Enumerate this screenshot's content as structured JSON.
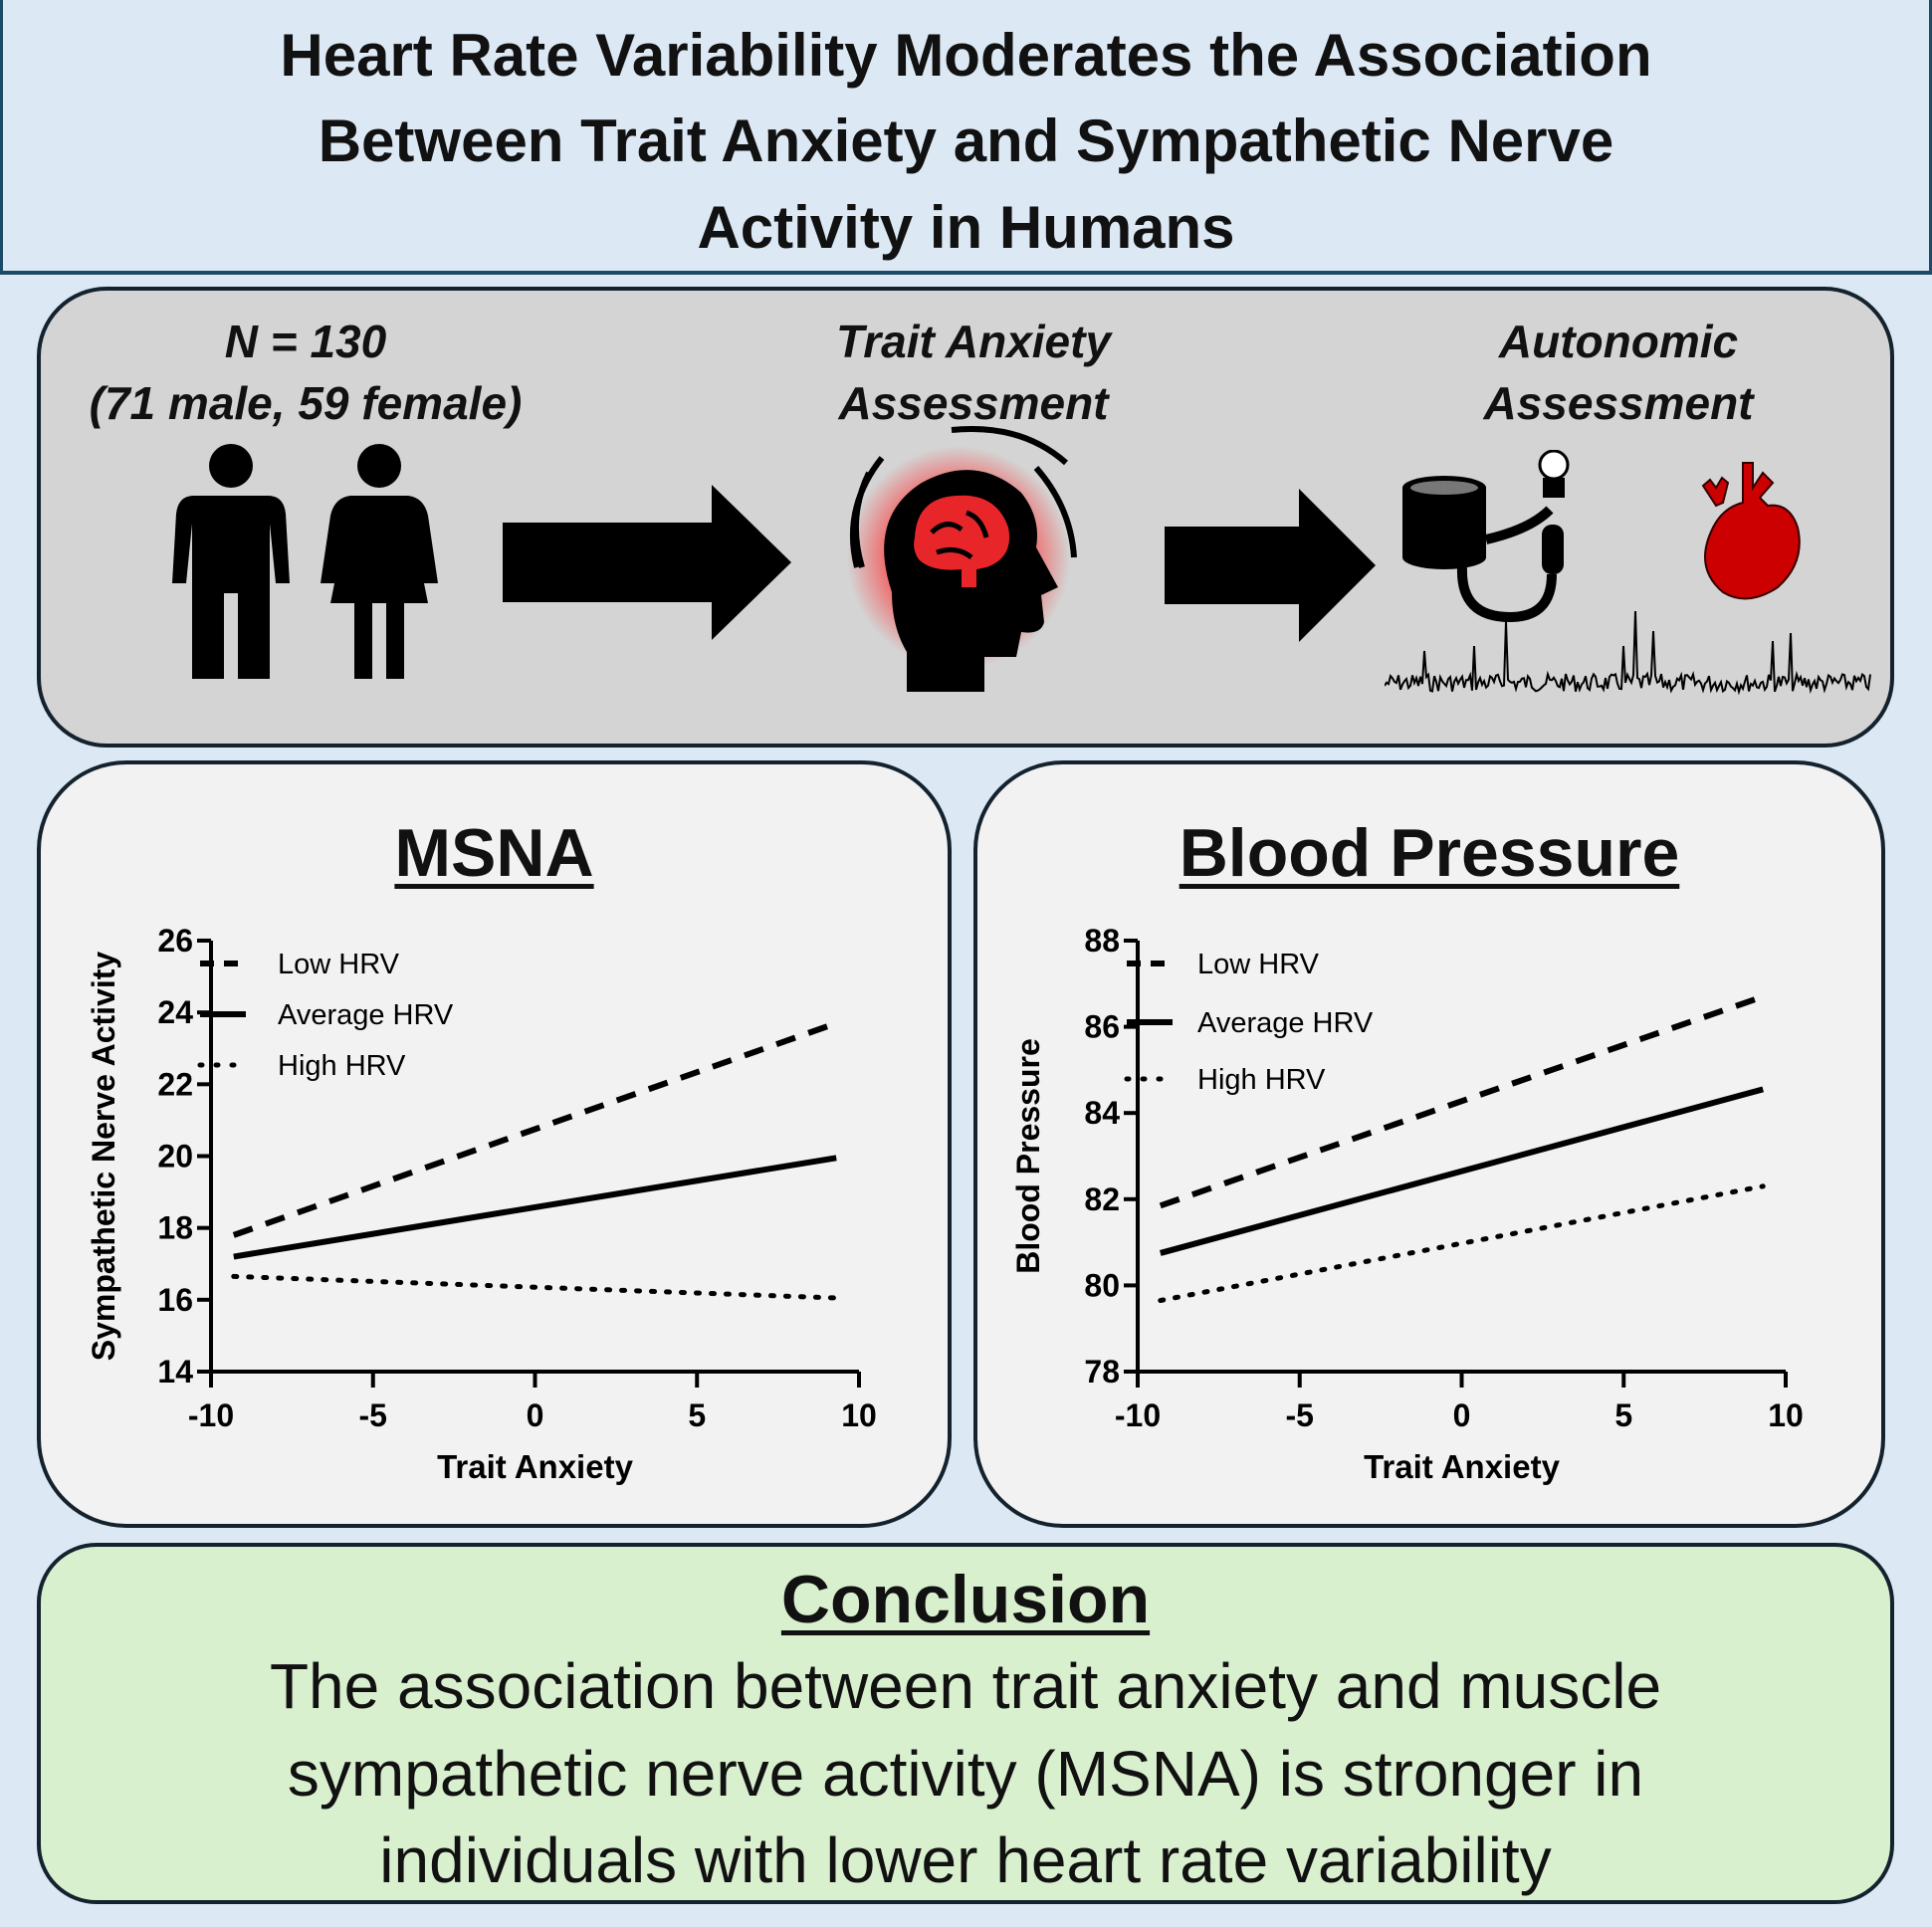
{
  "title": {
    "lines": [
      "Heart Rate Variability Moderates the Association",
      "Between Trait Anxiety and Sympathetic Nerve",
      "Activity in Humans"
    ]
  },
  "methods": {
    "sample": {
      "line1": "N = 130",
      "line2": "(71 male, 59 female)"
    },
    "anxiety": {
      "line1": "Trait Anxiety",
      "line2": "Assessment"
    },
    "autonomic": {
      "line1": "Autonomic",
      "line2": "Assessment"
    },
    "icons": [
      "male-person-icon",
      "female-person-icon",
      "arrow-right-icon",
      "brain-head-icon",
      "blood-pressure-cuff-icon",
      "heart-icon",
      "nerve-signal-trace-icon"
    ],
    "colors": {
      "brain": "#e8262a",
      "heart": "#cc0000"
    }
  },
  "chart_data": [
    {
      "type": "line",
      "title": "MSNA",
      "xlabel": "Trait Anxiety",
      "ylabel": "Sympathetic Nerve Activity",
      "xlim": [
        -10,
        10
      ],
      "ylim": [
        14,
        26
      ],
      "xticks": [
        -10,
        -5,
        0,
        5,
        10
      ],
      "yticks": [
        14,
        16,
        18,
        20,
        22,
        24,
        26
      ],
      "grid": false,
      "legend": "top-left",
      "series": [
        {
          "name": "Low HRV",
          "style": "dashed",
          "x": [
            -9.3,
            9.3
          ],
          "y": [
            17.8,
            23.7
          ]
        },
        {
          "name": "Average HRV",
          "style": "solid",
          "x": [
            -9.3,
            9.3
          ],
          "y": [
            17.2,
            19.95
          ]
        },
        {
          "name": "High HRV",
          "style": "dotted",
          "x": [
            -9.3,
            9.3
          ],
          "y": [
            16.65,
            16.05
          ]
        }
      ]
    },
    {
      "type": "line",
      "title": "Blood Pressure",
      "xlabel": "Trait Anxiety",
      "ylabel": "Blood Pressure",
      "xlim": [
        -10,
        10
      ],
      "ylim": [
        78,
        88
      ],
      "xticks": [
        -10,
        -5,
        0,
        5,
        10
      ],
      "yticks": [
        78,
        80,
        82,
        84,
        86,
        88
      ],
      "grid": false,
      "legend": "top-left",
      "series": [
        {
          "name": "Low HRV",
          "style": "dashed",
          "x": [
            -9.3,
            9.3
          ],
          "y": [
            81.85,
            86.7
          ]
        },
        {
          "name": "Average HRV",
          "style": "solid",
          "x": [
            -9.3,
            9.3
          ],
          "y": [
            80.75,
            84.55
          ]
        },
        {
          "name": "High HRV",
          "style": "dotted",
          "x": [
            -9.3,
            9.3
          ],
          "y": [
            79.65,
            82.3
          ]
        }
      ]
    }
  ],
  "conclusion": {
    "title": "Conclusion",
    "lines": [
      "The association between trait anxiety and muscle",
      "sympathetic nerve activity (MSNA) is stronger in",
      "individuals with lower heart rate variability"
    ]
  }
}
